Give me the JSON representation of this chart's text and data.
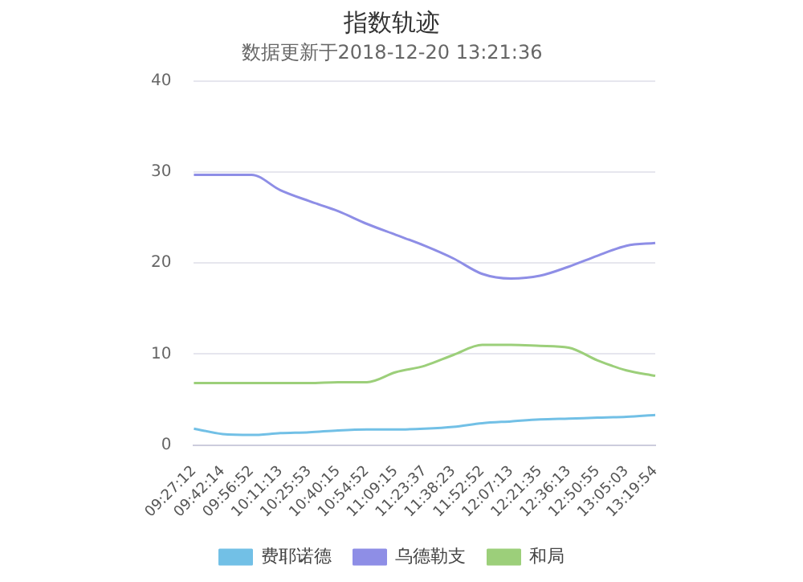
{
  "chart_data": {
    "type": "line",
    "title": "指数轨迹",
    "subtitle": "数据更新于2018-12-20 13:21:36",
    "categories": [
      "09:27:12",
      "09:42:14",
      "09:56:52",
      "10:11:13",
      "10:25:53",
      "10:40:15",
      "10:54:52",
      "11:09:15",
      "11:23:37",
      "11:38:23",
      "11:52:52",
      "12:07:13",
      "12:21:35",
      "12:36:13",
      "12:50:55",
      "13:05:03",
      "13:19:54"
    ],
    "series": [
      {
        "name": "费耶诺德",
        "color": "#72c0e6",
        "values": [
          1.8,
          1.2,
          1.1,
          1.3,
          1.4,
          1.6,
          1.7,
          1.7,
          1.8,
          2.0,
          2.4,
          2.6,
          2.8,
          2.9,
          3.0,
          3.1,
          3.3
        ]
      },
      {
        "name": "乌德勒支",
        "color": "#8e8ee6",
        "values": [
          29.7,
          29.7,
          29.7,
          28.0,
          26.8,
          25.7,
          24.3,
          23.1,
          21.9,
          20.5,
          18.8,
          18.3,
          18.6,
          19.6,
          20.8,
          21.9,
          22.2
        ]
      },
      {
        "name": "和局",
        "color": "#9ccf7a",
        "values": [
          6.8,
          6.8,
          6.8,
          6.8,
          6.8,
          6.9,
          6.9,
          8.0,
          8.7,
          9.9,
          11.0,
          11.0,
          10.9,
          10.7,
          9.3,
          8.2,
          7.6
        ]
      }
    ],
    "ylim": [
      0,
      40
    ],
    "yticks": [
      0,
      10,
      20,
      30,
      40
    ],
    "grid": "y",
    "legend": "bottom",
    "marker": "none",
    "line_style": "solid"
  }
}
